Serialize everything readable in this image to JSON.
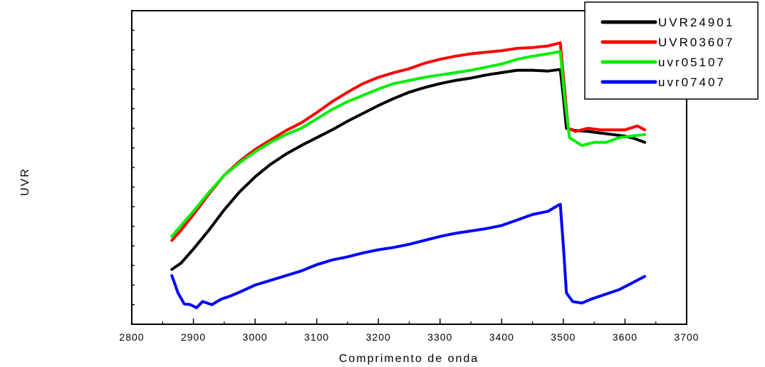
{
  "chart_data": {
    "type": "line",
    "title": "",
    "xlabel": "Comprimento de onda",
    "ylabel": "UVR",
    "xlim": [
      2800,
      3700
    ],
    "ylim": [
      3800,
      7800
    ],
    "x_ticks": [
      2800,
      2900,
      3000,
      3100,
      3200,
      3300,
      3400,
      3500,
      3600,
      3700
    ],
    "y_ticks": [
      4000,
      4500,
      5000,
      5500,
      6000,
      6500,
      7000,
      7500
    ],
    "grid": false,
    "legend_position": "top-right",
    "series": [
      {
        "name": "UVR24901",
        "color": "#000000",
        "points": [
          [
            2865,
            4500
          ],
          [
            2880,
            4580
          ],
          [
            2900,
            4760
          ],
          [
            2925,
            5000
          ],
          [
            2950,
            5260
          ],
          [
            2975,
            5490
          ],
          [
            3000,
            5680
          ],
          [
            3025,
            5840
          ],
          [
            3050,
            5970
          ],
          [
            3075,
            6080
          ],
          [
            3100,
            6180
          ],
          [
            3125,
            6280
          ],
          [
            3150,
            6390
          ],
          [
            3175,
            6490
          ],
          [
            3200,
            6590
          ],
          [
            3225,
            6680
          ],
          [
            3250,
            6760
          ],
          [
            3275,
            6820
          ],
          [
            3300,
            6870
          ],
          [
            3325,
            6910
          ],
          [
            3350,
            6940
          ],
          [
            3375,
            6980
          ],
          [
            3400,
            7010
          ],
          [
            3425,
            7040
          ],
          [
            3450,
            7040
          ],
          [
            3475,
            7030
          ],
          [
            3495,
            7050
          ],
          [
            3500,
            6700
          ],
          [
            3505,
            6300
          ],
          [
            3520,
            6270
          ],
          [
            3540,
            6260
          ],
          [
            3560,
            6240
          ],
          [
            3580,
            6220
          ],
          [
            3600,
            6200
          ],
          [
            3615,
            6170
          ],
          [
            3632,
            6120
          ]
        ]
      },
      {
        "name": "UVR03607",
        "color": "#ff0000",
        "points": [
          [
            2865,
            4870
          ],
          [
            2880,
            5000
          ],
          [
            2900,
            5200
          ],
          [
            2925,
            5460
          ],
          [
            2950,
            5700
          ],
          [
            2975,
            5880
          ],
          [
            3000,
            6030
          ],
          [
            3025,
            6150
          ],
          [
            3050,
            6270
          ],
          [
            3075,
            6370
          ],
          [
            3100,
            6500
          ],
          [
            3125,
            6640
          ],
          [
            3150,
            6760
          ],
          [
            3175,
            6870
          ],
          [
            3200,
            6950
          ],
          [
            3225,
            7010
          ],
          [
            3250,
            7060
          ],
          [
            3275,
            7130
          ],
          [
            3300,
            7180
          ],
          [
            3325,
            7220
          ],
          [
            3350,
            7250
          ],
          [
            3375,
            7270
          ],
          [
            3400,
            7290
          ],
          [
            3425,
            7320
          ],
          [
            3450,
            7330
          ],
          [
            3475,
            7350
          ],
          [
            3495,
            7390
          ],
          [
            3502,
            6800
          ],
          [
            3508,
            6300
          ],
          [
            3520,
            6260
          ],
          [
            3540,
            6300
          ],
          [
            3560,
            6280
          ],
          [
            3580,
            6280
          ],
          [
            3600,
            6280
          ],
          [
            3620,
            6330
          ],
          [
            3632,
            6280
          ]
        ]
      },
      {
        "name": "uvr05107",
        "color": "#00ee00",
        "points": [
          [
            2865,
            4920
          ],
          [
            2880,
            5060
          ],
          [
            2900,
            5240
          ],
          [
            2925,
            5480
          ],
          [
            2950,
            5700
          ],
          [
            2975,
            5860
          ],
          [
            3000,
            6000
          ],
          [
            3025,
            6120
          ],
          [
            3050,
            6220
          ],
          [
            3075,
            6300
          ],
          [
            3100,
            6420
          ],
          [
            3125,
            6540
          ],
          [
            3150,
            6640
          ],
          [
            3175,
            6720
          ],
          [
            3200,
            6800
          ],
          [
            3225,
            6870
          ],
          [
            3250,
            6910
          ],
          [
            3275,
            6950
          ],
          [
            3300,
            6980
          ],
          [
            3325,
            7010
          ],
          [
            3350,
            7040
          ],
          [
            3375,
            7080
          ],
          [
            3400,
            7120
          ],
          [
            3425,
            7180
          ],
          [
            3450,
            7220
          ],
          [
            3475,
            7250
          ],
          [
            3495,
            7280
          ],
          [
            3502,
            6700
          ],
          [
            3510,
            6180
          ],
          [
            3530,
            6080
          ],
          [
            3550,
            6120
          ],
          [
            3570,
            6120
          ],
          [
            3590,
            6180
          ],
          [
            3610,
            6200
          ],
          [
            3632,
            6220
          ]
        ]
      },
      {
        "name": "uvr07407",
        "color": "#0000ff",
        "points": [
          [
            2865,
            4420
          ],
          [
            2875,
            4200
          ],
          [
            2885,
            4060
          ],
          [
            2895,
            4050
          ],
          [
            2905,
            4010
          ],
          [
            2915,
            4090
          ],
          [
            2930,
            4050
          ],
          [
            2945,
            4120
          ],
          [
            2960,
            4160
          ],
          [
            2975,
            4210
          ],
          [
            3000,
            4300
          ],
          [
            3025,
            4360
          ],
          [
            3050,
            4420
          ],
          [
            3075,
            4480
          ],
          [
            3100,
            4560
          ],
          [
            3125,
            4620
          ],
          [
            3150,
            4660
          ],
          [
            3175,
            4710
          ],
          [
            3200,
            4750
          ],
          [
            3225,
            4780
          ],
          [
            3250,
            4820
          ],
          [
            3275,
            4870
          ],
          [
            3300,
            4920
          ],
          [
            3325,
            4960
          ],
          [
            3350,
            4990
          ],
          [
            3375,
            5020
          ],
          [
            3400,
            5060
          ],
          [
            3425,
            5130
          ],
          [
            3450,
            5200
          ],
          [
            3475,
            5240
          ],
          [
            3490,
            5310
          ],
          [
            3495,
            5330
          ],
          [
            3500,
            4800
          ],
          [
            3505,
            4200
          ],
          [
            3515,
            4090
          ],
          [
            3530,
            4070
          ],
          [
            3545,
            4120
          ],
          [
            3560,
            4160
          ],
          [
            3575,
            4200
          ],
          [
            3590,
            4240
          ],
          [
            3610,
            4320
          ],
          [
            3632,
            4410
          ]
        ]
      }
    ]
  }
}
